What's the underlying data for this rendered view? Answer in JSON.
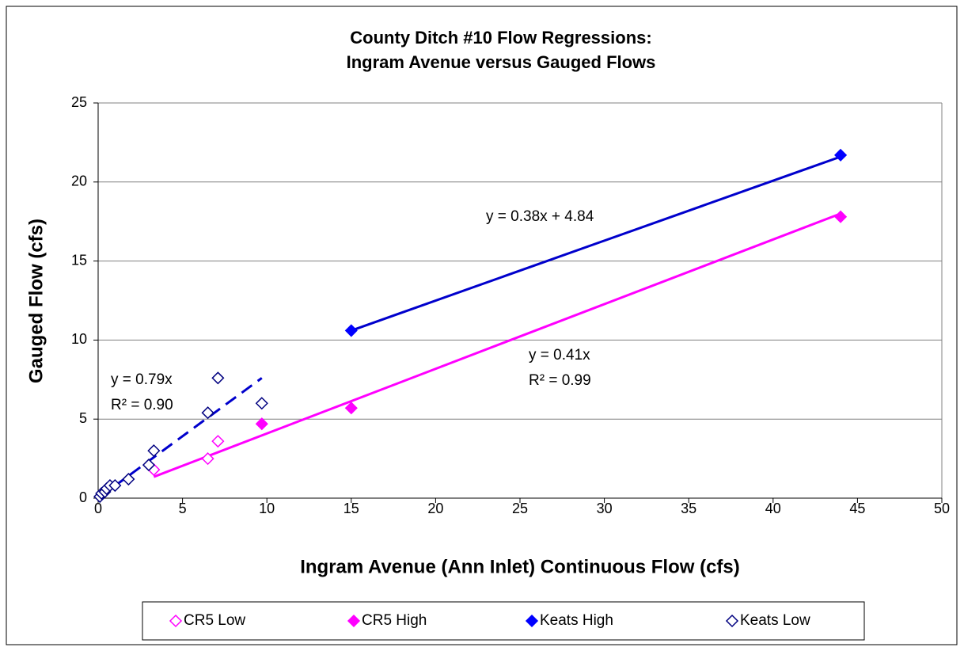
{
  "chart_data": {
    "type": "scatter",
    "title": [
      "County Ditch #10 Flow Regressions:",
      "Ingram Avenue versus Gauged Flows"
    ],
    "xlabel": "Ingram Avenue (Ann Inlet) Continuous Flow (cfs)",
    "ylabel": "Gauged Flow (cfs)",
    "xlim": [
      0,
      50
    ],
    "xticks": [
      0,
      5,
      10,
      15,
      20,
      25,
      30,
      35,
      40,
      45,
      50
    ],
    "ylim": [
      0,
      25
    ],
    "yticks": [
      0,
      5,
      10,
      15,
      20,
      25
    ],
    "grid": true,
    "legend": "bottom",
    "series": [
      {
        "name": "CR5 Low",
        "color": "#ff00ff",
        "filled": false,
        "x": [
          3.3,
          6.5,
          7.1
        ],
        "values": [
          1.8,
          2.5,
          3.6
        ]
      },
      {
        "name": "CR5 High",
        "color": "#ff00ff",
        "filled": true,
        "x": [
          9.7,
          15,
          44
        ],
        "values": [
          4.7,
          5.7,
          17.8
        ]
      },
      {
        "name": "Keats High",
        "color": "#0000ff",
        "filled": true,
        "x": [
          15,
          44
        ],
        "values": [
          10.6,
          21.7
        ]
      },
      {
        "name": "Keats Low",
        "color": "#000080",
        "filled": false,
        "x": [
          0.1,
          0.2,
          0.4,
          0.5,
          0.7,
          1.0,
          1.8,
          3.0,
          3.3,
          6.5,
          7.1,
          9.7
        ],
        "values": [
          0.1,
          0.3,
          0.4,
          0.6,
          0.8,
          0.8,
          1.2,
          2.1,
          3.0,
          5.4,
          7.6,
          6.0
        ]
      }
    ],
    "trendlines": [
      {
        "color": "#ff00ff",
        "dashed": false,
        "x": [
          3.3,
          44
        ],
        "values": [
          1.35,
          18.0
        ]
      },
      {
        "color": "#0000cc",
        "dashed": false,
        "x": [
          15,
          44
        ],
        "values": [
          10.6,
          21.6
        ]
      },
      {
        "color": "#0000cc",
        "dashed": true,
        "x": [
          0,
          9.7
        ],
        "values": [
          0,
          7.6
        ]
      }
    ],
    "annotations": [
      "y = 0.38x + 4.84",
      "y = 0.41x",
      "R² = 0.99",
      "y = 0.79x",
      "R² = 0.90"
    ]
  }
}
